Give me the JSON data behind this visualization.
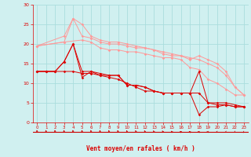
{
  "xlabel": "Vent moyen/en rafales ( km/h )",
  "xlim": [
    -0.5,
    23.5
  ],
  "ylim": [
    0,
    30
  ],
  "xticks": [
    0,
    1,
    2,
    3,
    4,
    5,
    6,
    7,
    8,
    9,
    10,
    11,
    12,
    13,
    14,
    15,
    16,
    17,
    18,
    19,
    20,
    21,
    22,
    23
  ],
  "yticks": [
    0,
    5,
    10,
    15,
    20,
    25,
    30
  ],
  "background_color": "#d0f0f0",
  "grid_color": "#aadddd",
  "line_color_light": "#ff9999",
  "line_color_dark": "#dd0000",
  "arrow_color": "#cc0000",
  "series_light": [
    {
      "x": [
        0,
        3,
        4,
        5,
        6,
        7,
        8,
        9,
        10,
        11,
        12,
        13,
        14,
        15,
        16,
        17,
        18,
        19,
        20,
        21,
        22,
        23
      ],
      "y": [
        19.5,
        20.5,
        26.5,
        22,
        21.5,
        20.5,
        20,
        20,
        19.5,
        19,
        19,
        18.5,
        17.5,
        17,
        17,
        16,
        17,
        16,
        15,
        13,
        9,
        7
      ]
    },
    {
      "x": [
        0,
        3,
        4,
        5,
        6,
        7,
        8,
        9,
        10,
        11,
        12,
        13,
        14,
        15,
        16,
        17,
        18,
        19,
        20,
        21,
        22,
        23
      ],
      "y": [
        19.5,
        22,
        26.5,
        25,
        22,
        21,
        20.5,
        20.5,
        20,
        19.5,
        19,
        18.5,
        18,
        17.5,
        17,
        16.5,
        16,
        15,
        14,
        12,
        9,
        7
      ]
    },
    {
      "x": [
        0,
        3,
        5,
        6,
        7,
        8,
        9,
        10,
        11,
        12,
        13,
        14,
        15,
        16,
        17,
        18,
        19,
        20,
        21,
        22,
        23
      ],
      "y": [
        19.5,
        20.5,
        21,
        20.5,
        19,
        18.5,
        18.5,
        18,
        18,
        17.5,
        17,
        16.5,
        16.5,
        16,
        14,
        13.5,
        11,
        10,
        8.5,
        7,
        7
      ]
    }
  ],
  "series_dark": [
    {
      "x": [
        0,
        1,
        2,
        3,
        4,
        5,
        6,
        7,
        8,
        9,
        10,
        11,
        12,
        13,
        14,
        15,
        16,
        17,
        18,
        19,
        20,
        21,
        22,
        23
      ],
      "y": [
        13,
        13,
        13,
        15.5,
        20,
        11.5,
        13,
        12,
        12,
        12,
        9.5,
        9.5,
        9,
        8,
        7.5,
        7.5,
        7.5,
        7.5,
        2,
        4,
        4,
        4.5,
        4,
        4
      ]
    },
    {
      "x": [
        0,
        1,
        2,
        3,
        4,
        5,
        6,
        7,
        8,
        9,
        10,
        11,
        12,
        13,
        14,
        15,
        16,
        17,
        18,
        19,
        20,
        21,
        22,
        23
      ],
      "y": [
        13,
        13,
        13,
        15.5,
        20,
        13,
        13,
        12.5,
        12,
        12,
        9.5,
        9.5,
        9,
        8,
        7.5,
        7.5,
        7.5,
        7.5,
        13,
        5,
        5,
        5,
        4.5,
        4
      ]
    },
    {
      "x": [
        0,
        1,
        2,
        3,
        4,
        5,
        6,
        7,
        8,
        9,
        10,
        11,
        12,
        13,
        14,
        15,
        16,
        17,
        18,
        19,
        20,
        21,
        22,
        23
      ],
      "y": [
        13,
        13,
        13,
        13,
        13,
        12.5,
        12.5,
        12,
        11.5,
        11,
        10,
        9,
        8,
        8,
        7.5,
        7.5,
        7.5,
        7.5,
        7.5,
        5,
        4.5,
        4.5,
        4,
        4
      ]
    }
  ],
  "arrows_x": [
    0,
    1,
    2,
    3,
    4,
    5,
    6,
    7,
    8,
    9,
    10,
    11,
    12,
    13,
    14,
    15,
    16,
    17,
    18,
    19,
    20,
    21,
    22,
    23
  ],
  "arrows_angle_deg": [
    195,
    195,
    195,
    195,
    195,
    195,
    195,
    195,
    200,
    205,
    210,
    215,
    220,
    225,
    230,
    240,
    245,
    255,
    265,
    270,
    280,
    285,
    290,
    300
  ]
}
